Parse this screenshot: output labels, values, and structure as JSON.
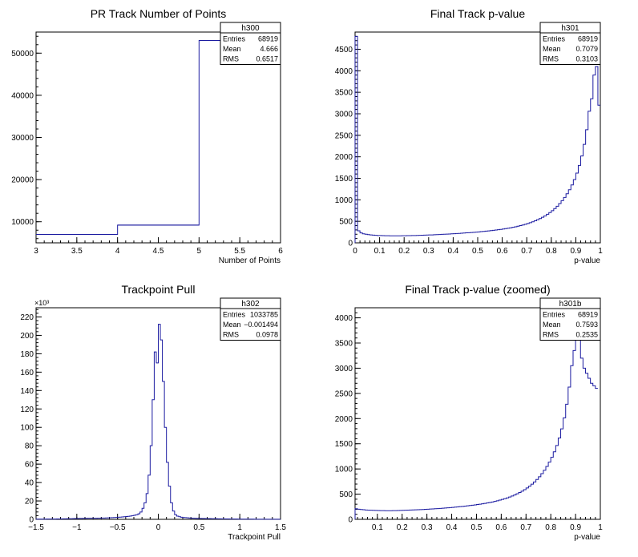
{
  "chart_data": [
    {
      "type": "histogram",
      "title": "PR Track Number of Points",
      "xlabel": "Number of Points",
      "ylabel": "",
      "xlim": [
        3,
        6
      ],
      "ylim": [
        5000,
        55000
      ],
      "y_axis_start_value": 5000,
      "xticks": [
        3,
        3.5,
        4,
        4.5,
        5,
        5.5,
        6
      ],
      "xtick_labels": [
        "3",
        "3.5",
        "4",
        "4.5",
        "5",
        "5.5",
        "6"
      ],
      "yticks": [
        10000,
        20000,
        30000,
        40000,
        50000
      ],
      "ytick_labels": [
        "10000",
        "20000",
        "30000",
        "40000",
        "50000"
      ],
      "bins": [
        [
          3,
          4,
          7000
        ],
        [
          4,
          5,
          9200
        ],
        [
          5,
          6,
          53000
        ]
      ],
      "stats": {
        "name": "h300",
        "rows": [
          [
            "Entries",
            "68919"
          ],
          [
            "Mean",
            "4.666"
          ],
          [
            "RMS",
            "0.6517"
          ]
        ]
      }
    },
    {
      "type": "histogram",
      "title": "Final Track p-value",
      "xlabel": "p-value",
      "ylabel": "",
      "xlim": [
        0,
        1
      ],
      "ylim": [
        0,
        4900
      ],
      "xticks": [
        0,
        0.1,
        0.2,
        0.3,
        0.4,
        0.5,
        0.6,
        0.7,
        0.8,
        0.9,
        1
      ],
      "xtick_labels": [
        "0",
        "0.1",
        "0.2",
        "0.3",
        "0.4",
        "0.5",
        "0.6",
        "0.7",
        "0.8",
        "0.9",
        "1"
      ],
      "yticks": [
        0,
        500,
        1000,
        1500,
        2000,
        2500,
        3000,
        3500,
        4000,
        4500
      ],
      "ytick_labels": [
        "0",
        "500",
        "1000",
        "1500",
        "2000",
        "2500",
        "3000",
        "3500",
        "4000",
        "4500"
      ],
      "bin_width": 0.01,
      "values": [
        4800,
        280,
        230,
        210,
        200,
        190,
        185,
        180,
        175,
        170,
        170,
        168,
        166,
        165,
        164,
        163,
        163,
        163,
        164,
        165,
        166,
        167,
        168,
        170,
        171,
        173,
        175,
        177,
        179,
        181,
        183,
        185,
        188,
        191,
        194,
        197,
        200,
        203,
        206,
        209,
        212,
        216,
        220,
        224,
        228,
        232,
        236,
        240,
        245,
        250,
        255,
        260,
        266,
        272,
        278,
        284,
        291,
        298,
        305,
        313,
        321,
        330,
        340,
        350,
        361,
        373,
        386,
        400,
        415,
        431,
        449,
        468,
        489,
        512,
        537,
        564,
        594,
        627,
        663,
        703,
        747,
        796,
        851,
        912,
        980,
        1055,
        1140,
        1235,
        1345,
        1470,
        1620,
        1800,
        2020,
        2290,
        2630,
        3060,
        3350,
        3900,
        4100,
        3200
      ],
      "stats": {
        "name": "h301",
        "rows": [
          [
            "Entries",
            "68919"
          ],
          [
            "Mean",
            "0.7079"
          ],
          [
            "RMS",
            "0.3103"
          ]
        ]
      }
    },
    {
      "type": "histogram",
      "title": "Trackpoint Pull",
      "xlabel": "Trackpoint Pull",
      "ylabel": "",
      "exponent_label": "×10³",
      "xlim": [
        -1.5,
        1.5
      ],
      "ylim": [
        0,
        230000
      ],
      "xticks": [
        -1.5,
        -1,
        -0.5,
        0,
        0.5,
        1,
        1.5
      ],
      "xtick_labels": [
        "−1.5",
        "−1",
        "−0.5",
        "0",
        "0.5",
        "1",
        "1.5"
      ],
      "yticks": [
        0,
        20000,
        40000,
        60000,
        80000,
        100000,
        120000,
        140000,
        160000,
        180000,
        200000,
        220000
      ],
      "ytick_labels": [
        "0",
        "20",
        "40",
        "60",
        "80",
        "100",
        "120",
        "140",
        "160",
        "180",
        "200",
        "220"
      ],
      "bin_width": 0.025,
      "values": [
        200,
        200,
        220,
        240,
        260,
        280,
        300,
        320,
        350,
        380,
        410,
        440,
        480,
        520,
        560,
        600,
        650,
        700,
        760,
        820,
        880,
        950,
        1000,
        1050,
        1100,
        1150,
        1180,
        1200,
        1220,
        1250,
        1280,
        1320,
        1380,
        1450,
        1550,
        1650,
        1750,
        1850,
        1950,
        2100,
        2250,
        2400,
        2600,
        2800,
        3000,
        3300,
        3600,
        4000,
        4500,
        5000,
        6000,
        8000,
        12000,
        18000,
        28000,
        48000,
        80000,
        130000,
        182000,
        170000,
        212000,
        195000,
        150000,
        100000,
        62000,
        36000,
        18000,
        9000,
        5000,
        3500,
        2800,
        2300,
        2000,
        1800,
        1600,
        1400,
        1300,
        1200,
        1100,
        1000,
        950,
        900,
        850,
        800,
        760,
        720,
        680,
        640,
        600,
        560,
        520,
        480,
        450,
        420,
        390,
        360,
        330,
        300,
        280,
        260,
        240,
        220,
        210,
        200,
        190,
        180,
        170,
        160,
        150,
        140,
        130,
        120,
        115,
        110,
        105,
        100,
        95,
        90,
        85,
        80
      ],
      "stats": {
        "name": "h302",
        "rows": [
          [
            "Entries",
            "1033785"
          ],
          [
            "Mean",
            "−0.001494"
          ],
          [
            "RMS",
            "0.0978"
          ]
        ]
      }
    },
    {
      "type": "histogram",
      "title": "Final Track p-value (zoomed)",
      "xlabel": "p-value",
      "ylabel": "",
      "xlim": [
        0.01,
        1
      ],
      "ylim": [
        0,
        4200
      ],
      "xticks": [
        0.1,
        0.2,
        0.3,
        0.4,
        0.5,
        0.6,
        0.7,
        0.8,
        0.9,
        1
      ],
      "xtick_labels": [
        "0.1",
        "0.2",
        "0.3",
        "0.4",
        "0.5",
        "0.6",
        "0.7",
        "0.8",
        "0.9",
        "1"
      ],
      "yticks": [
        0,
        500,
        1000,
        1500,
        2000,
        2500,
        3000,
        3500,
        4000
      ],
      "ytick_labels": [
        "0",
        "500",
        "1000",
        "1500",
        "2000",
        "2500",
        "3000",
        "3500",
        "4000"
      ],
      "bin_width": 0.01,
      "values": [
        210,
        200,
        195,
        190,
        185,
        182,
        180,
        178,
        176,
        175,
        174,
        173,
        172,
        172,
        172,
        173,
        174,
        175,
        176,
        178,
        180,
        182,
        184,
        186,
        188,
        190,
        192,
        195,
        198,
        201,
        204,
        207,
        210,
        213,
        217,
        221,
        225,
        229,
        233,
        237,
        242,
        247,
        252,
        257,
        262,
        268,
        274,
        280,
        287,
        294,
        301,
        309,
        317,
        326,
        335,
        345,
        356,
        368,
        381,
        395,
        410,
        426,
        444,
        463,
        484,
        507,
        532,
        559,
        589,
        622,
        658,
        698,
        742,
        791,
        845,
        906,
        974,
        1050,
        1135,
        1230,
        1340,
        1465,
        1615,
        1795,
        2015,
        2285,
        2625,
        3050,
        3350,
        3900,
        4100,
        3200,
        3000,
        2900,
        2800,
        2700,
        2650,
        2600
      ],
      "stats": {
        "name": "h301b",
        "rows": [
          [
            "Entries",
            "68919"
          ],
          [
            "Mean",
            "0.7593"
          ],
          [
            "RMS",
            "0.2535"
          ]
        ]
      }
    }
  ]
}
